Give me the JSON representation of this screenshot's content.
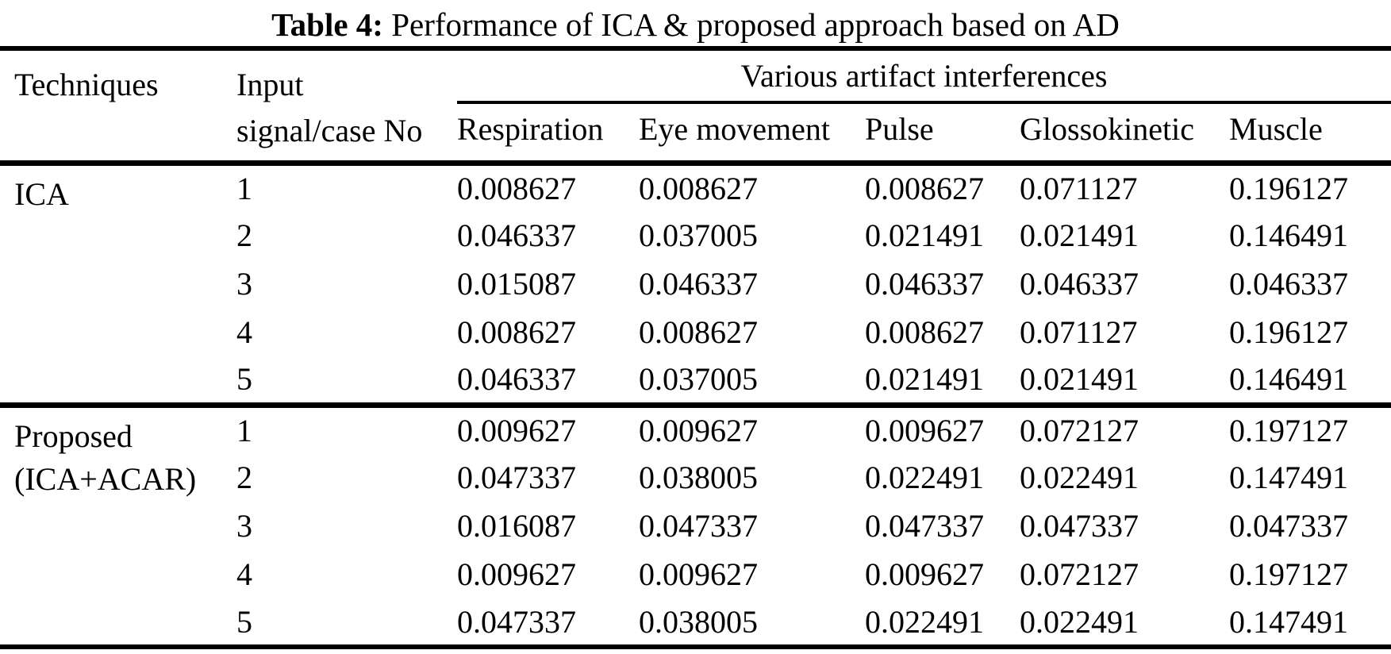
{
  "title": {
    "label": "Table 4:",
    "text": "Performance of ICA & proposed approach based on AD"
  },
  "table": {
    "header": {
      "techniques": "Techniques",
      "input_line1": "Input",
      "input_line2": "signal/case No",
      "group": "Various artifact interferences",
      "artifact_columns": [
        "Respiration",
        "Eye movement",
        "Pulse",
        "Glossokinetic",
        "Muscle"
      ]
    },
    "groups": [
      {
        "technique": "ICA",
        "technique_line2": "",
        "rows": [
          {
            "case": "1",
            "values": [
              "0.008627",
              "0.008627",
              "0.008627",
              "0.071127",
              "0.196127"
            ]
          },
          {
            "case": "2",
            "values": [
              "0.046337",
              "0.037005",
              "0.021491",
              "0.021491",
              "0.146491"
            ]
          },
          {
            "case": "3",
            "values": [
              "0.015087",
              "0.046337",
              "0.046337",
              "0.046337",
              "0.046337"
            ]
          },
          {
            "case": "4",
            "values": [
              "0.008627",
              "0.008627",
              "0.008627",
              "0.071127",
              "0.196127"
            ]
          },
          {
            "case": "5",
            "values": [
              "0.046337",
              "0.037005",
              "0.021491",
              "0.021491",
              "0.146491"
            ]
          }
        ]
      },
      {
        "technique": "Proposed",
        "technique_line2": "(ICA+ACAR)",
        "rows": [
          {
            "case": "1",
            "values": [
              "0.009627",
              "0.009627",
              "0.009627",
              "0.072127",
              "0.197127"
            ]
          },
          {
            "case": "2",
            "values": [
              "0.047337",
              "0.038005",
              "0.022491",
              "0.022491",
              "0.147491"
            ]
          },
          {
            "case": "3",
            "values": [
              "0.016087",
              "0.047337",
              "0.047337",
              "0.047337",
              "0.047337"
            ]
          },
          {
            "case": "4",
            "values": [
              "0.009627",
              "0.009627",
              "0.009627",
              "0.072127",
              "0.197127"
            ]
          },
          {
            "case": "5",
            "values": [
              "0.047337",
              "0.038005",
              "0.022491",
              "0.022491",
              "0.147491"
            ]
          }
        ]
      }
    ]
  },
  "colors": {
    "text": "#000000",
    "background": "#ffffff",
    "rule": "#000000"
  }
}
